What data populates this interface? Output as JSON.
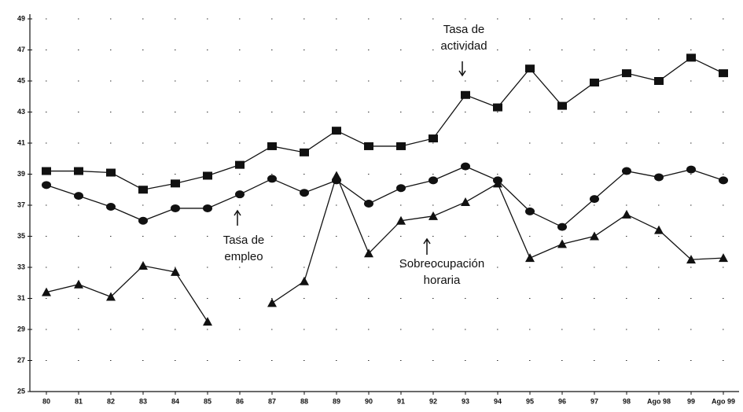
{
  "chart_data": {
    "type": "line",
    "categories": [
      "80",
      "81",
      "82",
      "83",
      "84",
      "85",
      "86",
      "87",
      "88",
      "89",
      "90",
      "91",
      "92",
      "93",
      "94",
      "95",
      "96",
      "97",
      "98",
      "Ago 98",
      "99",
      "Ago 99"
    ],
    "ylim": [
      25,
      49
    ],
    "yticks": [
      25,
      27,
      29,
      31,
      33,
      35,
      37,
      39,
      41,
      43,
      45,
      47,
      49
    ],
    "grid": true,
    "color": "#111111",
    "series": [
      {
        "marker": "square",
        "values": [
          39.2,
          39.2,
          39.1,
          38.0,
          38.4,
          38.9,
          39.6,
          40.8,
          40.4,
          41.8,
          40.8,
          40.8,
          41.3,
          44.1,
          43.3,
          45.8,
          43.4,
          44.9,
          45.5,
          45.0,
          46.5,
          45.5
        ]
      },
      {
        "marker": "circle",
        "values": [
          38.3,
          37.6,
          36.9,
          36.0,
          36.8,
          36.8,
          37.7,
          38.7,
          37.8,
          38.6,
          37.1,
          38.1,
          38.6,
          39.5,
          38.6,
          36.6,
          35.6,
          37.4,
          39.2,
          38.8,
          39.3,
          38.6
        ]
      },
      {
        "marker": "triangle",
        "values": [
          31.4,
          31.9,
          31.1,
          33.1,
          32.7,
          29.5,
          null,
          30.7,
          32.1,
          38.9,
          33.9,
          36.0,
          36.3,
          37.2,
          38.4,
          33.6,
          34.5,
          35.0,
          36.4,
          35.4,
          33.5,
          33.6
        ]
      }
    ],
    "annotations": [
      {
        "lines": [
          "Tasa de",
          "actividad"
        ]
      },
      {
        "lines": [
          "Tasa de",
          "empleo"
        ]
      },
      {
        "lines": [
          "Sobreocupación",
          "horaria"
        ]
      }
    ]
  }
}
